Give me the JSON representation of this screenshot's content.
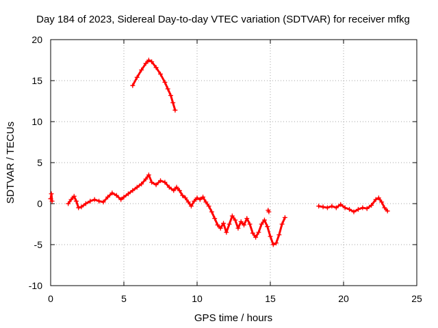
{
  "chart_data": {
    "type": "scatter",
    "title": "Day 184 of 2023, Sidereal Day-to-day VTEC variation (SDTVAR) for receiver mfkg",
    "xlabel": "GPS time / hours",
    "ylabel": "SDTVAR / TECUs",
    "xlim": [
      0,
      25
    ],
    "ylim": [
      -10,
      20
    ],
    "xticks": [
      0,
      5,
      10,
      15,
      20,
      25
    ],
    "yticks": [
      -10,
      -5,
      0,
      5,
      10,
      15,
      20
    ],
    "xtick_labels": [
      "0",
      "5",
      "10",
      "15",
      "20",
      "25"
    ],
    "ytick_labels": [
      "-10",
      "-5",
      "0",
      "5",
      "10",
      "15",
      "20"
    ],
    "grid": true,
    "marker": "+",
    "color": "#ff0000",
    "series": [
      {
        "name": "SDTVAR",
        "segments": [
          [
            [
              0.0,
              0.6
            ],
            [
              0.05,
              1.2
            ],
            [
              0.1,
              0.3
            ]
          ],
          [
            [
              1.2,
              0.0
            ],
            [
              1.4,
              0.5
            ],
            [
              1.6,
              0.9
            ],
            [
              1.75,
              0.3
            ],
            [
              1.9,
              -0.5
            ],
            [
              2.1,
              -0.4
            ],
            [
              2.4,
              0.0
            ],
            [
              2.7,
              0.3
            ],
            [
              3.0,
              0.5
            ],
            [
              3.3,
              0.3
            ],
            [
              3.6,
              0.2
            ],
            [
              3.9,
              0.8
            ],
            [
              4.2,
              1.3
            ],
            [
              4.5,
              1.0
            ],
            [
              4.8,
              0.5
            ],
            [
              5.0,
              0.8
            ],
            [
              5.3,
              1.2
            ],
            [
              5.6,
              1.6
            ],
            [
              5.9,
              2.0
            ],
            [
              6.2,
              2.4
            ],
            [
              6.5,
              3.0
            ],
            [
              6.7,
              3.5
            ],
            [
              6.9,
              2.6
            ],
            [
              7.2,
              2.3
            ],
            [
              7.5,
              2.8
            ],
            [
              7.8,
              2.6
            ],
            [
              8.1,
              2.0
            ],
            [
              8.4,
              1.6
            ],
            [
              8.6,
              2.0
            ],
            [
              8.8,
              1.6
            ],
            [
              9.0,
              1.0
            ],
            [
              9.2,
              0.7
            ],
            [
              9.4,
              0.2
            ],
            [
              9.6,
              -0.3
            ],
            [
              9.8,
              0.3
            ],
            [
              10.0,
              0.7
            ],
            [
              10.2,
              0.5
            ],
            [
              10.4,
              0.8
            ],
            [
              10.6,
              0.2
            ],
            [
              10.8,
              -0.3
            ],
            [
              11.0,
              -1.0
            ],
            [
              11.2,
              -1.8
            ],
            [
              11.4,
              -2.6
            ],
            [
              11.6,
              -3.0
            ],
            [
              11.8,
              -2.4
            ],
            [
              12.0,
              -3.5
            ],
            [
              12.2,
              -2.5
            ],
            [
              12.4,
              -1.5
            ],
            [
              12.6,
              -2.0
            ],
            [
              12.8,
              -3.0
            ],
            [
              13.0,
              -2.2
            ],
            [
              13.2,
              -2.6
            ],
            [
              13.4,
              -1.8
            ],
            [
              13.6,
              -2.5
            ],
            [
              13.8,
              -3.6
            ],
            [
              14.0,
              -4.1
            ],
            [
              14.2,
              -3.5
            ],
            [
              14.4,
              -2.5
            ],
            [
              14.6,
              -2.0
            ],
            [
              14.8,
              -2.8
            ],
            [
              15.0,
              -4.0
            ],
            [
              15.2,
              -5.0
            ],
            [
              15.4,
              -4.8
            ],
            [
              15.6,
              -3.8
            ],
            [
              15.8,
              -2.5
            ],
            [
              16.0,
              -1.7
            ]
          ],
          [
            [
              5.6,
              14.4
            ],
            [
              5.9,
              15.4
            ],
            [
              6.2,
              16.3
            ],
            [
              6.5,
              17.1
            ],
            [
              6.7,
              17.5
            ],
            [
              6.9,
              17.3
            ],
            [
              7.2,
              16.6
            ],
            [
              7.5,
              15.8
            ],
            [
              7.8,
              14.8
            ],
            [
              8.0,
              14.0
            ],
            [
              8.2,
              13.2
            ],
            [
              8.35,
              12.3
            ],
            [
              8.5,
              11.4
            ]
          ],
          [
            [
              18.3,
              -0.3
            ],
            [
              18.6,
              -0.4
            ],
            [
              18.9,
              -0.5
            ],
            [
              19.2,
              -0.3
            ],
            [
              19.5,
              -0.5
            ],
            [
              19.8,
              -0.1
            ],
            [
              20.1,
              -0.5
            ],
            [
              20.4,
              -0.7
            ],
            [
              20.7,
              -1.0
            ],
            [
              21.0,
              -0.7
            ],
            [
              21.3,
              -0.5
            ],
            [
              21.6,
              -0.6
            ],
            [
              21.9,
              -0.2
            ],
            [
              22.2,
              0.5
            ],
            [
              22.4,
              0.7
            ],
            [
              22.6,
              0.2
            ],
            [
              22.8,
              -0.5
            ],
            [
              23.0,
              -0.9
            ]
          ],
          [
            [
              14.9,
              -1.0
            ],
            [
              14.85,
              -0.8
            ]
          ]
        ]
      }
    ]
  }
}
